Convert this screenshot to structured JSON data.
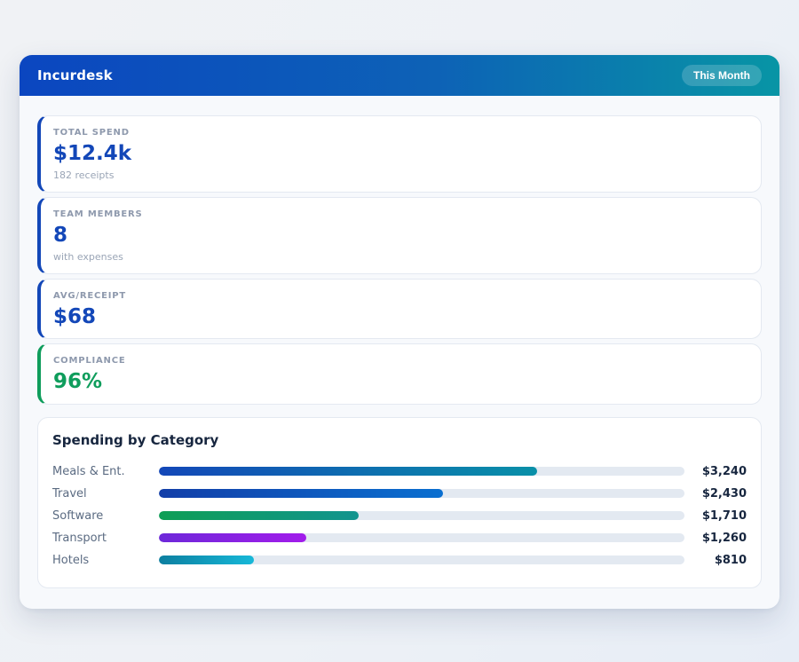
{
  "header": {
    "title": "Incurdesk",
    "badge_label": "This Month",
    "gradient_from": "#0b46c0",
    "gradient_to": "#0895a5"
  },
  "stats": [
    {
      "label": "TOTAL SPEND",
      "value": "$12.4k",
      "sub": "182 receipts",
      "accent": "#1347b8",
      "value_color": "#1347b8"
    },
    {
      "label": "TEAM MEMBERS",
      "value": "8",
      "sub": "with expenses",
      "accent": "#1347b8",
      "value_color": "#1347b8"
    },
    {
      "label": "AVG/RECEIPT",
      "value": "$68",
      "sub": "",
      "accent": "#1347b8",
      "value_color": "#1347b8"
    },
    {
      "label": "COMPLIANCE",
      "value": "96%",
      "sub": "",
      "accent": "#0f9d5c",
      "value_color": "#0f9d5c"
    }
  ],
  "categories": {
    "title": "Spending by Category",
    "track_color": "#e3e9f1",
    "rows": [
      {
        "label": "Meals & Ent.",
        "value": "$3,240",
        "percent": 72,
        "from": "#1347b8",
        "to": "#0990a8"
      },
      {
        "label": "Travel",
        "value": "$2,430",
        "percent": 54,
        "from": "#123ea8",
        "to": "#0a6fd0"
      },
      {
        "label": "Software",
        "value": "$1,710",
        "percent": 38,
        "from": "#0e9e55",
        "to": "#12948f"
      },
      {
        "label": "Transport",
        "value": "$1,260",
        "percent": 28,
        "from": "#6d28d9",
        "to": "#a21ceb"
      },
      {
        "label": "Hotels",
        "value": "$810",
        "percent": 18,
        "from": "#0c7fa0",
        "to": "#17b8d8"
      }
    ]
  }
}
